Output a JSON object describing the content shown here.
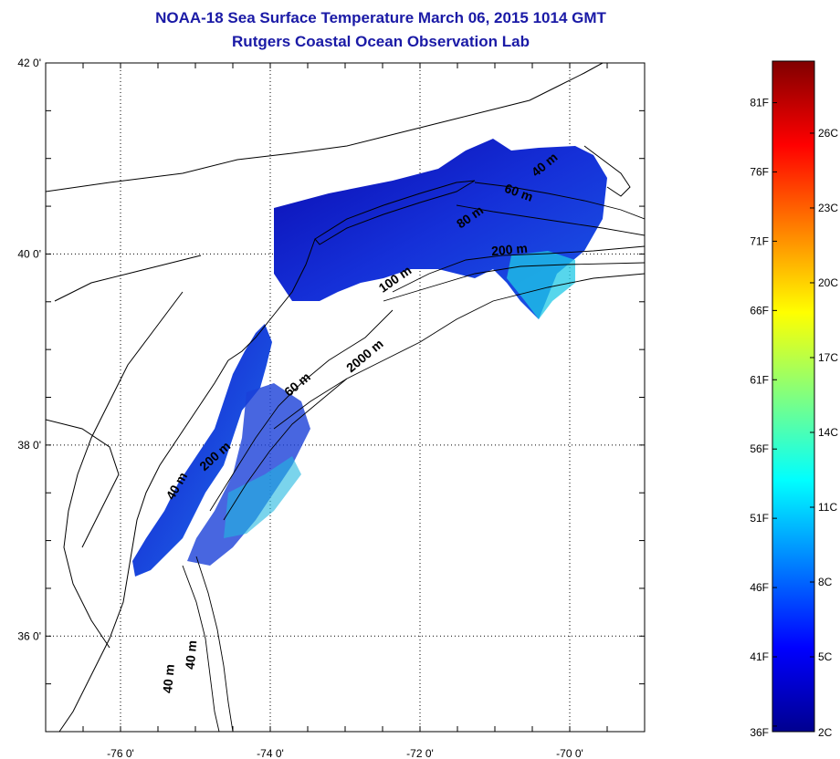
{
  "title": "NOAA-18 Sea Surface Temperature March 06, 2015 1014 GMT",
  "subtitle": "Rutgers Coastal Ocean Observation Lab",
  "map": {
    "lon_range": [
      -77,
      -69
    ],
    "lat_range": [
      35,
      42
    ],
    "lon_ticks": [
      {
        "value": -76,
        "label": "-76 0'"
      },
      {
        "value": -74,
        "label": "-74 0'"
      },
      {
        "value": -72,
        "label": "-72 0'"
      },
      {
        "value": -70,
        "label": "-70 0'"
      }
    ],
    "lat_ticks": [
      {
        "value": 42,
        "label": "42 0'"
      },
      {
        "value": 40,
        "label": "40 0'"
      },
      {
        "value": 38,
        "label": "38 0'"
      },
      {
        "value": 36,
        "label": "36 0'"
      }
    ],
    "grid": "dotted",
    "contour_labels": [
      {
        "text": "40 m",
        "lon": -70.3,
        "lat": 40.9,
        "rot": -40
      },
      {
        "text": "60 m",
        "lon": -70.7,
        "lat": 40.6,
        "rot": 20
      },
      {
        "text": "80 m",
        "lon": -71.3,
        "lat": 40.35,
        "rot": -35
      },
      {
        "text": "200 m",
        "lon": -70.8,
        "lat": 40.0,
        "rot": -5
      },
      {
        "text": "100 m",
        "lon": -72.3,
        "lat": 39.7,
        "rot": -35
      },
      {
        "text": "2000 m",
        "lon": -72.7,
        "lat": 38.9,
        "rot": -40
      },
      {
        "text": "60 m",
        "lon": -73.6,
        "lat": 38.6,
        "rot": -40
      },
      {
        "text": "200 m",
        "lon": -74.7,
        "lat": 37.85,
        "rot": -42
      },
      {
        "text": "40 m",
        "lon": -75.2,
        "lat": 37.55,
        "rot": -60
      },
      {
        "text": "40 m",
        "lon": -75.0,
        "lat": 35.8,
        "rot": -85
      },
      {
        "text": "40 m",
        "lon": -75.3,
        "lat": 35.55,
        "rot": -85
      }
    ]
  },
  "colorbar": {
    "fahrenheit_labels": [
      "81F",
      "76F",
      "71F",
      "66F",
      "61F",
      "56F",
      "51F",
      "46F",
      "41F",
      "36F"
    ],
    "celsius_labels": [
      "26C",
      "23C",
      "20C",
      "17C",
      "14C",
      "11C",
      "8C",
      "5C",
      "2C"
    ],
    "colors": [
      "#00008f",
      "#0000ff",
      "#0080ff",
      "#00ffff",
      "#80ff80",
      "#ffff00",
      "#ff8000",
      "#ff0000",
      "#800000"
    ]
  }
}
